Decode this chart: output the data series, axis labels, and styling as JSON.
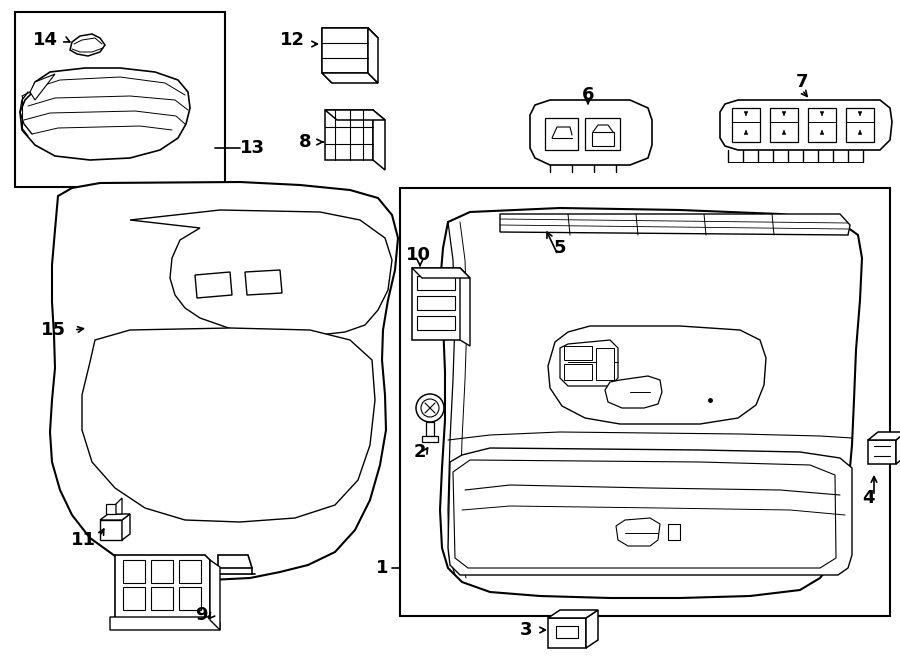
{
  "bg": "#ffffff",
  "lw_main": 1.4,
  "lw_med": 1.0,
  "lw_thin": 0.7,
  "font_size": 12,
  "arrow_lw": 1.2
}
